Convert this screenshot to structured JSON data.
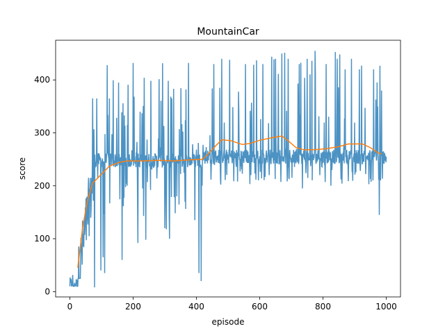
{
  "chart_data": {
    "type": "line",
    "title": "MountainCar",
    "xlabel": "episode",
    "ylabel": "score",
    "xlim": [
      -45,
      1045
    ],
    "ylim": [
      -10,
      475
    ],
    "xticks": [
      0,
      200,
      400,
      600,
      800,
      1000
    ],
    "xtick_labels": [
      "0",
      "200",
      "400",
      "600",
      "800",
      "1000"
    ],
    "yticks": [
      0,
      100,
      200,
      300,
      400
    ],
    "ytick_labels": [
      "0",
      "100",
      "200",
      "300",
      "400"
    ],
    "grid": false,
    "legend": false,
    "series": [
      {
        "key": "raw",
        "color": "#1f77b4",
        "segments": [
          {
            "x0": 0,
            "x1": 25,
            "lo": 10,
            "hi": 35,
            "base": 13
          },
          {
            "x0": 25,
            "x1": 70,
            "lo": 25,
            "hi": 215,
            "base": 120
          },
          {
            "x0": 70,
            "x1": 420,
            "lo": 30,
            "hi": 432,
            "base": 248
          },
          {
            "x0": 420,
            "x1": 440,
            "lo": 220,
            "hi": 300,
            "base": 255
          },
          {
            "x0": 440,
            "x1": 1000,
            "lo": 145,
            "hi": 455,
            "base": 255
          }
        ],
        "spikes": [
          [
            72,
            365
          ],
          [
            78,
            8
          ],
          [
            85,
            365
          ],
          [
            98,
            40
          ],
          [
            105,
            65
          ],
          [
            110,
            35
          ],
          [
            118,
            428
          ],
          [
            125,
            365
          ],
          [
            165,
            60
          ],
          [
            172,
            333
          ],
          [
            182,
            315
          ],
          [
            200,
            432
          ],
          [
            215,
            92
          ],
          [
            222,
            340
          ],
          [
            235,
            404
          ],
          [
            240,
            98
          ],
          [
            300,
            120
          ],
          [
            305,
            118
          ],
          [
            315,
            100
          ],
          [
            322,
            365
          ],
          [
            338,
            180
          ],
          [
            375,
            432
          ],
          [
            395,
            135
          ],
          [
            408,
            35
          ],
          [
            415,
            20
          ],
          [
            418,
            200
          ],
          [
            455,
            430
          ],
          [
            480,
            440
          ],
          [
            505,
            438
          ],
          [
            530,
            208
          ],
          [
            555,
            430
          ],
          [
            572,
            220
          ],
          [
            590,
            437
          ],
          [
            610,
            430
          ],
          [
            630,
            220
          ],
          [
            650,
            440
          ],
          [
            670,
            450
          ],
          [
            690,
            440
          ],
          [
            702,
            215
          ],
          [
            725,
            430
          ],
          [
            735,
            195
          ],
          [
            750,
            440
          ],
          [
            775,
            455
          ],
          [
            790,
            220
          ],
          [
            810,
            430
          ],
          [
            825,
            200
          ],
          [
            845,
            440
          ],
          [
            870,
            420
          ],
          [
            890,
            440
          ],
          [
            915,
            420
          ],
          [
            935,
            222
          ],
          [
            960,
            420
          ],
          [
            978,
            145
          ],
          [
            985,
            380
          ],
          [
            995,
            262
          ]
        ]
      },
      {
        "key": "smoothed",
        "color": "#ff7f0e",
        "points": [
          [
            25,
            45
          ],
          [
            40,
            120
          ],
          [
            55,
            170
          ],
          [
            72,
            205
          ],
          [
            100,
            222
          ],
          [
            125,
            237
          ],
          [
            155,
            244
          ],
          [
            180,
            247
          ],
          [
            230,
            247
          ],
          [
            280,
            248
          ],
          [
            330,
            247
          ],
          [
            380,
            249
          ],
          [
            420,
            250
          ],
          [
            440,
            262
          ],
          [
            460,
            275
          ],
          [
            480,
            287
          ],
          [
            510,
            285
          ],
          [
            545,
            278
          ],
          [
            570,
            280
          ],
          [
            600,
            286
          ],
          [
            640,
            291
          ],
          [
            670,
            294
          ],
          [
            690,
            285
          ],
          [
            715,
            272
          ],
          [
            740,
            268
          ],
          [
            770,
            268
          ],
          [
            810,
            270
          ],
          [
            850,
            274
          ],
          [
            880,
            279
          ],
          [
            925,
            279
          ],
          [
            950,
            272
          ],
          [
            975,
            262
          ],
          [
            985,
            260
          ]
        ]
      }
    ]
  }
}
